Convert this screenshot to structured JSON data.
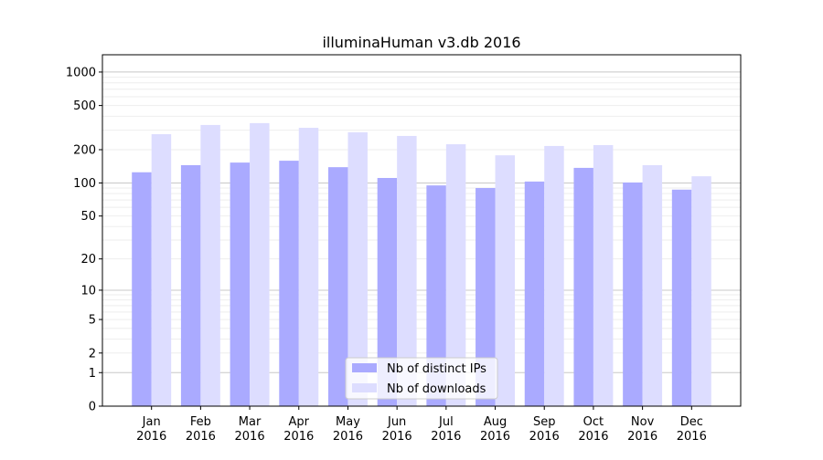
{
  "chart_data": {
    "type": "bar",
    "title": "illuminaHuman v3.db 2016",
    "xlabel": "",
    "ylabel": "",
    "yscale": "log(1+x)",
    "ylim": [
      0,
      1430
    ],
    "yticks": [
      0,
      1,
      2,
      5,
      10,
      20,
      50,
      100,
      200,
      500,
      1000
    ],
    "grid": true,
    "legend_position": "lower center",
    "categories": [
      "Jan\n2016",
      "Feb\n2016",
      "Mar\n2016",
      "Apr\n2016",
      "May\n2016",
      "Jun\n2016",
      "Jul\n2016",
      "Aug\n2016",
      "Sep\n2016",
      "Oct\n2016",
      "Nov\n2016",
      "Dec\n2016"
    ],
    "series": [
      {
        "name": "Nb of distinct IPs",
        "color": "#aaaaff",
        "values": [
          125,
          145,
          153,
          159,
          139,
          111,
          95,
          90,
          103,
          137,
          101,
          87
        ]
      },
      {
        "name": "Nb of downloads",
        "color": "#ddddff",
        "values": [
          276,
          334,
          347,
          315,
          287,
          266,
          224,
          178,
          216,
          220,
          145,
          115
        ]
      }
    ]
  }
}
